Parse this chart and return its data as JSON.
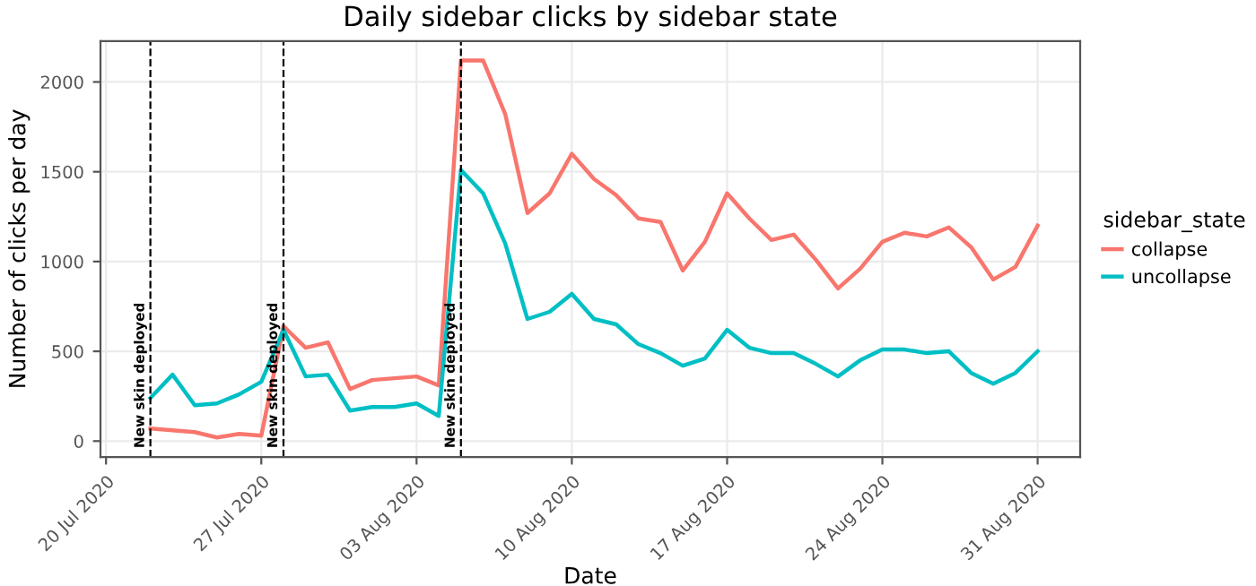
{
  "chart_data": {
    "type": "line",
    "title": "Daily sidebar clicks by sidebar state",
    "xlabel": "Date",
    "ylabel": "Number of clicks per day",
    "legend_title": "sidebar_state",
    "x": [
      "2020-07-22",
      "2020-07-23",
      "2020-07-24",
      "2020-07-25",
      "2020-07-26",
      "2020-07-27",
      "2020-07-28",
      "2020-07-29",
      "2020-07-30",
      "2020-07-31",
      "2020-08-01",
      "2020-08-02",
      "2020-08-03",
      "2020-08-04",
      "2020-08-05",
      "2020-08-06",
      "2020-08-07",
      "2020-08-08",
      "2020-08-09",
      "2020-08-10",
      "2020-08-11",
      "2020-08-12",
      "2020-08-13",
      "2020-08-14",
      "2020-08-15",
      "2020-08-16",
      "2020-08-17",
      "2020-08-18",
      "2020-08-19",
      "2020-08-20",
      "2020-08-21",
      "2020-08-22",
      "2020-08-23",
      "2020-08-24",
      "2020-08-25",
      "2020-08-26",
      "2020-08-27",
      "2020-08-28",
      "2020-08-29",
      "2020-08-30",
      "2020-08-31"
    ],
    "series": [
      {
        "name": "collapse",
        "color": "#f8766d",
        "values": [
          70,
          60,
          50,
          20,
          40,
          30,
          640,
          520,
          550,
          290,
          340,
          350,
          360,
          310,
          2120,
          2120,
          1820,
          1270,
          1380,
          1600,
          1460,
          1370,
          1240,
          1220,
          950,
          1110,
          1380,
          1240,
          1120,
          1150,
          1010,
          850,
          960,
          1110,
          1160,
          1140,
          1190,
          1080,
          900,
          970,
          1200
        ]
      },
      {
        "name": "uncollapse",
        "color": "#00bfc4",
        "values": [
          240,
          370,
          200,
          210,
          260,
          330,
          620,
          360,
          370,
          170,
          190,
          190,
          210,
          140,
          1510,
          1380,
          1100,
          680,
          720,
          820,
          680,
          650,
          540,
          490,
          420,
          460,
          620,
          520,
          490,
          490,
          430,
          360,
          450,
          510,
          510,
          490,
          500,
          380,
          320,
          380,
          500
        ]
      }
    ],
    "xlim": [
      "2020-07-19T18:00",
      "2020-09-01T22:00"
    ],
    "xticks": [
      {
        "value": "2020-07-20",
        "label": "20 Jul 2020"
      },
      {
        "value": "2020-07-27",
        "label": "27 Jul 2020"
      },
      {
        "value": "2020-08-03",
        "label": "03 Aug 2020"
      },
      {
        "value": "2020-08-10",
        "label": "10 Aug 2020"
      },
      {
        "value": "2020-08-17",
        "label": "17 Aug 2020"
      },
      {
        "value": "2020-08-24",
        "label": "24 Aug 2020"
      },
      {
        "value": "2020-08-31",
        "label": "31 Aug 2020"
      }
    ],
    "ylim": [
      -89,
      2228
    ],
    "yticks": [
      0,
      500,
      1000,
      1500,
      2000
    ],
    "ref_lines": [
      {
        "axis": "x",
        "value": "2020-07-22",
        "label": "New skin deployed",
        "line_style": "dashed",
        "color": "#000000"
      },
      {
        "axis": "x",
        "value": "2020-07-28",
        "label": "New skin deployed",
        "line_style": "dashed",
        "color": "#000000"
      },
      {
        "axis": "x",
        "value": "2020-08-05",
        "label": "New skin deployed",
        "line_style": "dashed",
        "color": "#000000"
      }
    ],
    "grid": true,
    "legend": "right",
    "marker": "none",
    "line_style": "solid"
  }
}
